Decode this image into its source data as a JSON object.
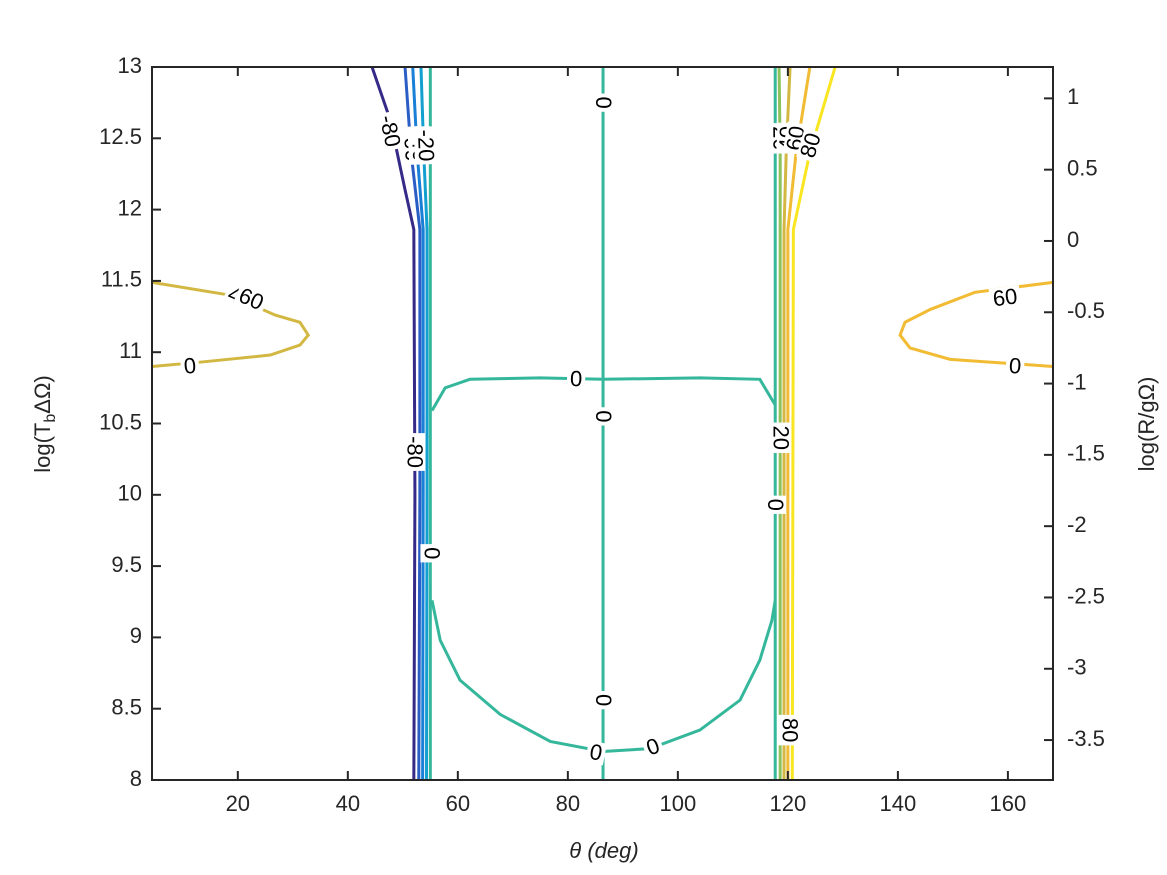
{
  "chart_data": {
    "type": "contour",
    "xlabel": "θ (deg)",
    "ylabel_parts": [
      "log(T",
      "b",
      "ΔΩ)"
    ],
    "y2label": "log(R/gΩ)",
    "xlim": [
      4.4,
      168.2
    ],
    "ylim": [
      8,
      13
    ],
    "y2lim": [
      -3.78,
      1.22
    ],
    "xticks": [
      20,
      40,
      60,
      80,
      100,
      120,
      140,
      160
    ],
    "yticks": [
      8,
      8.5,
      9,
      9.5,
      10,
      10.5,
      11,
      11.5,
      12,
      12.5,
      13
    ],
    "y2ticks": [
      -3.5,
      -3,
      -2.5,
      -2,
      -1.5,
      -1,
      -0.5,
      0,
      0.5,
      1
    ],
    "series": [
      {
        "level": -80,
        "color": "#352a87",
        "x": [
          44.4,
          47.7,
          50.4,
          52.0,
          52.2,
          52.0
        ],
        "y": [
          13,
          12.63,
          12.14,
          11.86,
          10.0,
          8
        ],
        "labels": [
          [
            47.6,
            12.55
          ],
          [
            52.1,
            10.3
          ]
        ]
      },
      {
        "level": -60,
        "color": "#2b5ec4",
        "x": [
          50.4,
          51.5,
          53.1,
          53.1,
          52.9
        ],
        "y": [
          13,
          12.4,
          11.86,
          10.0,
          8
        ],
        "labels": [
          [
            51.6,
            12.45
          ]
        ]
      },
      {
        "level": -40,
        "color": "#1a7fd6",
        "x": [
          51.8,
          52.6,
          53.7,
          53.7,
          53.6
        ],
        "y": [
          13,
          12.4,
          11.86,
          10.0,
          8
        ],
        "labels": [
          [
            53.0,
            12.45
          ]
        ]
      },
      {
        "level": -20,
        "color": "#13a0d0",
        "x": [
          53.3,
          53.8,
          54.4,
          54.4,
          54.3
        ],
        "y": [
          13,
          12.4,
          11.86,
          10.0,
          8
        ],
        "labels": [
          [
            54.1,
            12.45
          ]
        ]
      },
      {
        "level": 0,
        "color": "#35b79b",
        "x": [
          55.0,
          55.0,
          null,
          86.4,
          86.4,
          null,
          55.3,
          57.7,
          62.2,
          74.9,
          86.4,
          104.0,
          114.9,
          117.7,
          null,
          55.3,
          56.8,
          60.4,
          67.7,
          76.8,
          86.4,
          94.9,
          104.0,
          111.3,
          114.9,
          117.1,
          117.7,
          null,
          117.7,
          117.7
        ],
        "y": [
          13,
          8,
          null,
          13,
          8,
          null,
          10.59,
          10.75,
          10.81,
          10.82,
          10.81,
          10.82,
          10.81,
          10.63,
          null,
          9.26,
          8.98,
          8.7,
          8.46,
          8.27,
          8.2,
          8.22,
          8.35,
          8.56,
          8.84,
          9.12,
          9.26,
          null,
          13,
          8
        ],
        "labels": [
          [
            11.3,
            10.9
          ],
          [
            81.5,
            10.81
          ],
          [
            86.4,
            10.55
          ],
          [
            86.4,
            12.75
          ],
          [
            55.2,
            9.59
          ],
          [
            86.4,
            8.56
          ],
          [
            85.1,
            8.19
          ],
          [
            95.5,
            8.23
          ],
          [
            117.6,
            9.93
          ],
          [
            161.3,
            10.9
          ]
        ]
      },
      {
        "level": 20,
        "color": "#8cc25c",
        "x": [
          118.4,
          118.6,
          118.6,
          118.6
        ],
        "y": [
          13,
          12.4,
          11.86,
          8
        ],
        "labels": [
          [
            118.6,
            12.5
          ],
          [
            118.6,
            10.4
          ]
        ]
      },
      {
        "level": 40,
        "color": "#d2b843",
        "x": [
          120.4,
          119.7,
          119.3,
          119.3,
          null,
          4.4,
          18.6,
          26.8,
          31.3,
          32.8,
          31.3,
          25.9,
          13.1,
          4.4
        ],
        "y": [
          13,
          12.4,
          11.86,
          8,
          null,
          11.49,
          11.4,
          11.26,
          11.21,
          11.12,
          11.05,
          10.98,
          10.93,
          10.9
        ],
        "labels": [
          [
            120.0,
            12.5
          ],
          [
            20.4,
            11.38
          ]
        ]
      },
      {
        "level": 60,
        "color": "#f1bb34",
        "x": [
          124.0,
          121.5,
          120.0,
          120.0,
          null,
          168.2,
          154.0,
          145.9,
          141.3,
          140.4,
          142.2,
          149.5,
          168.2
        ],
        "y": [
          13,
          12.4,
          11.86,
          8,
          null,
          11.49,
          11.42,
          11.3,
          11.21,
          11.12,
          11.03,
          10.95,
          10.9
        ],
        "labels": [
          [
            121.5,
            12.5
          ],
          [
            22.4,
            11.37
          ],
          [
            159.5,
            11.38
          ]
        ]
      },
      {
        "level": 80,
        "color": "#f9e620",
        "x": [
          128.6,
          124.0,
          121.0,
          120.8
        ],
        "y": [
          13,
          12.4,
          11.86,
          8
        ],
        "labels": [
          [
            124.2,
            12.45
          ],
          [
            120.3,
            8.35
          ]
        ]
      }
    ]
  }
}
